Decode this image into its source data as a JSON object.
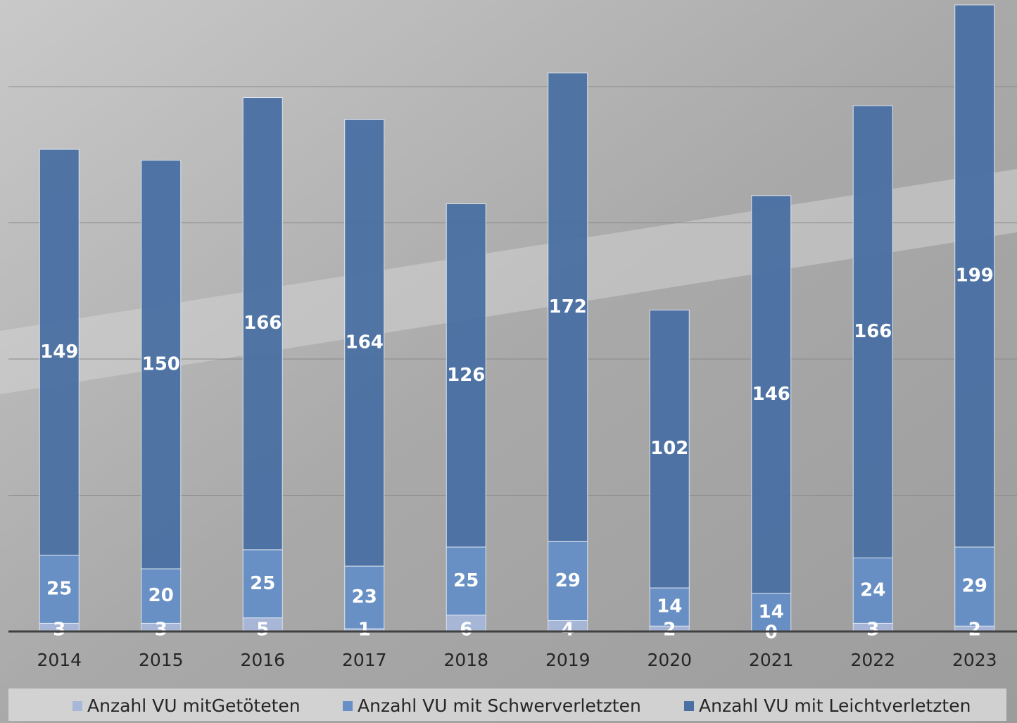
{
  "chart_data": {
    "type": "stacked_bar",
    "categories": [
      "2014",
      "2015",
      "2016",
      "2017",
      "2018",
      "2019",
      "2020",
      "2021",
      "2022",
      "2023"
    ],
    "series": [
      {
        "name": "Anzahl VU mitGetöteten",
        "color": "#a7b7d9",
        "values": [
          3,
          3,
          5,
          1,
          6,
          4,
          2,
          0,
          3,
          2
        ]
      },
      {
        "name": "Anzahl VU mit Schwerverletzten",
        "color": "#658fc6",
        "values": [
          25,
          20,
          25,
          23,
          25,
          29,
          14,
          14,
          24,
          29
        ]
      },
      {
        "name": "Anzahl VU mit Leichtverletzten",
        "color": "#4a70a3",
        "values": [
          149,
          150,
          166,
          164,
          126,
          172,
          102,
          146,
          166,
          199
        ]
      }
    ],
    "ylim": [
      0,
      230
    ],
    "yticks": [
      50,
      100,
      150,
      200
    ],
    "grid": true,
    "legend": "bottom"
  }
}
